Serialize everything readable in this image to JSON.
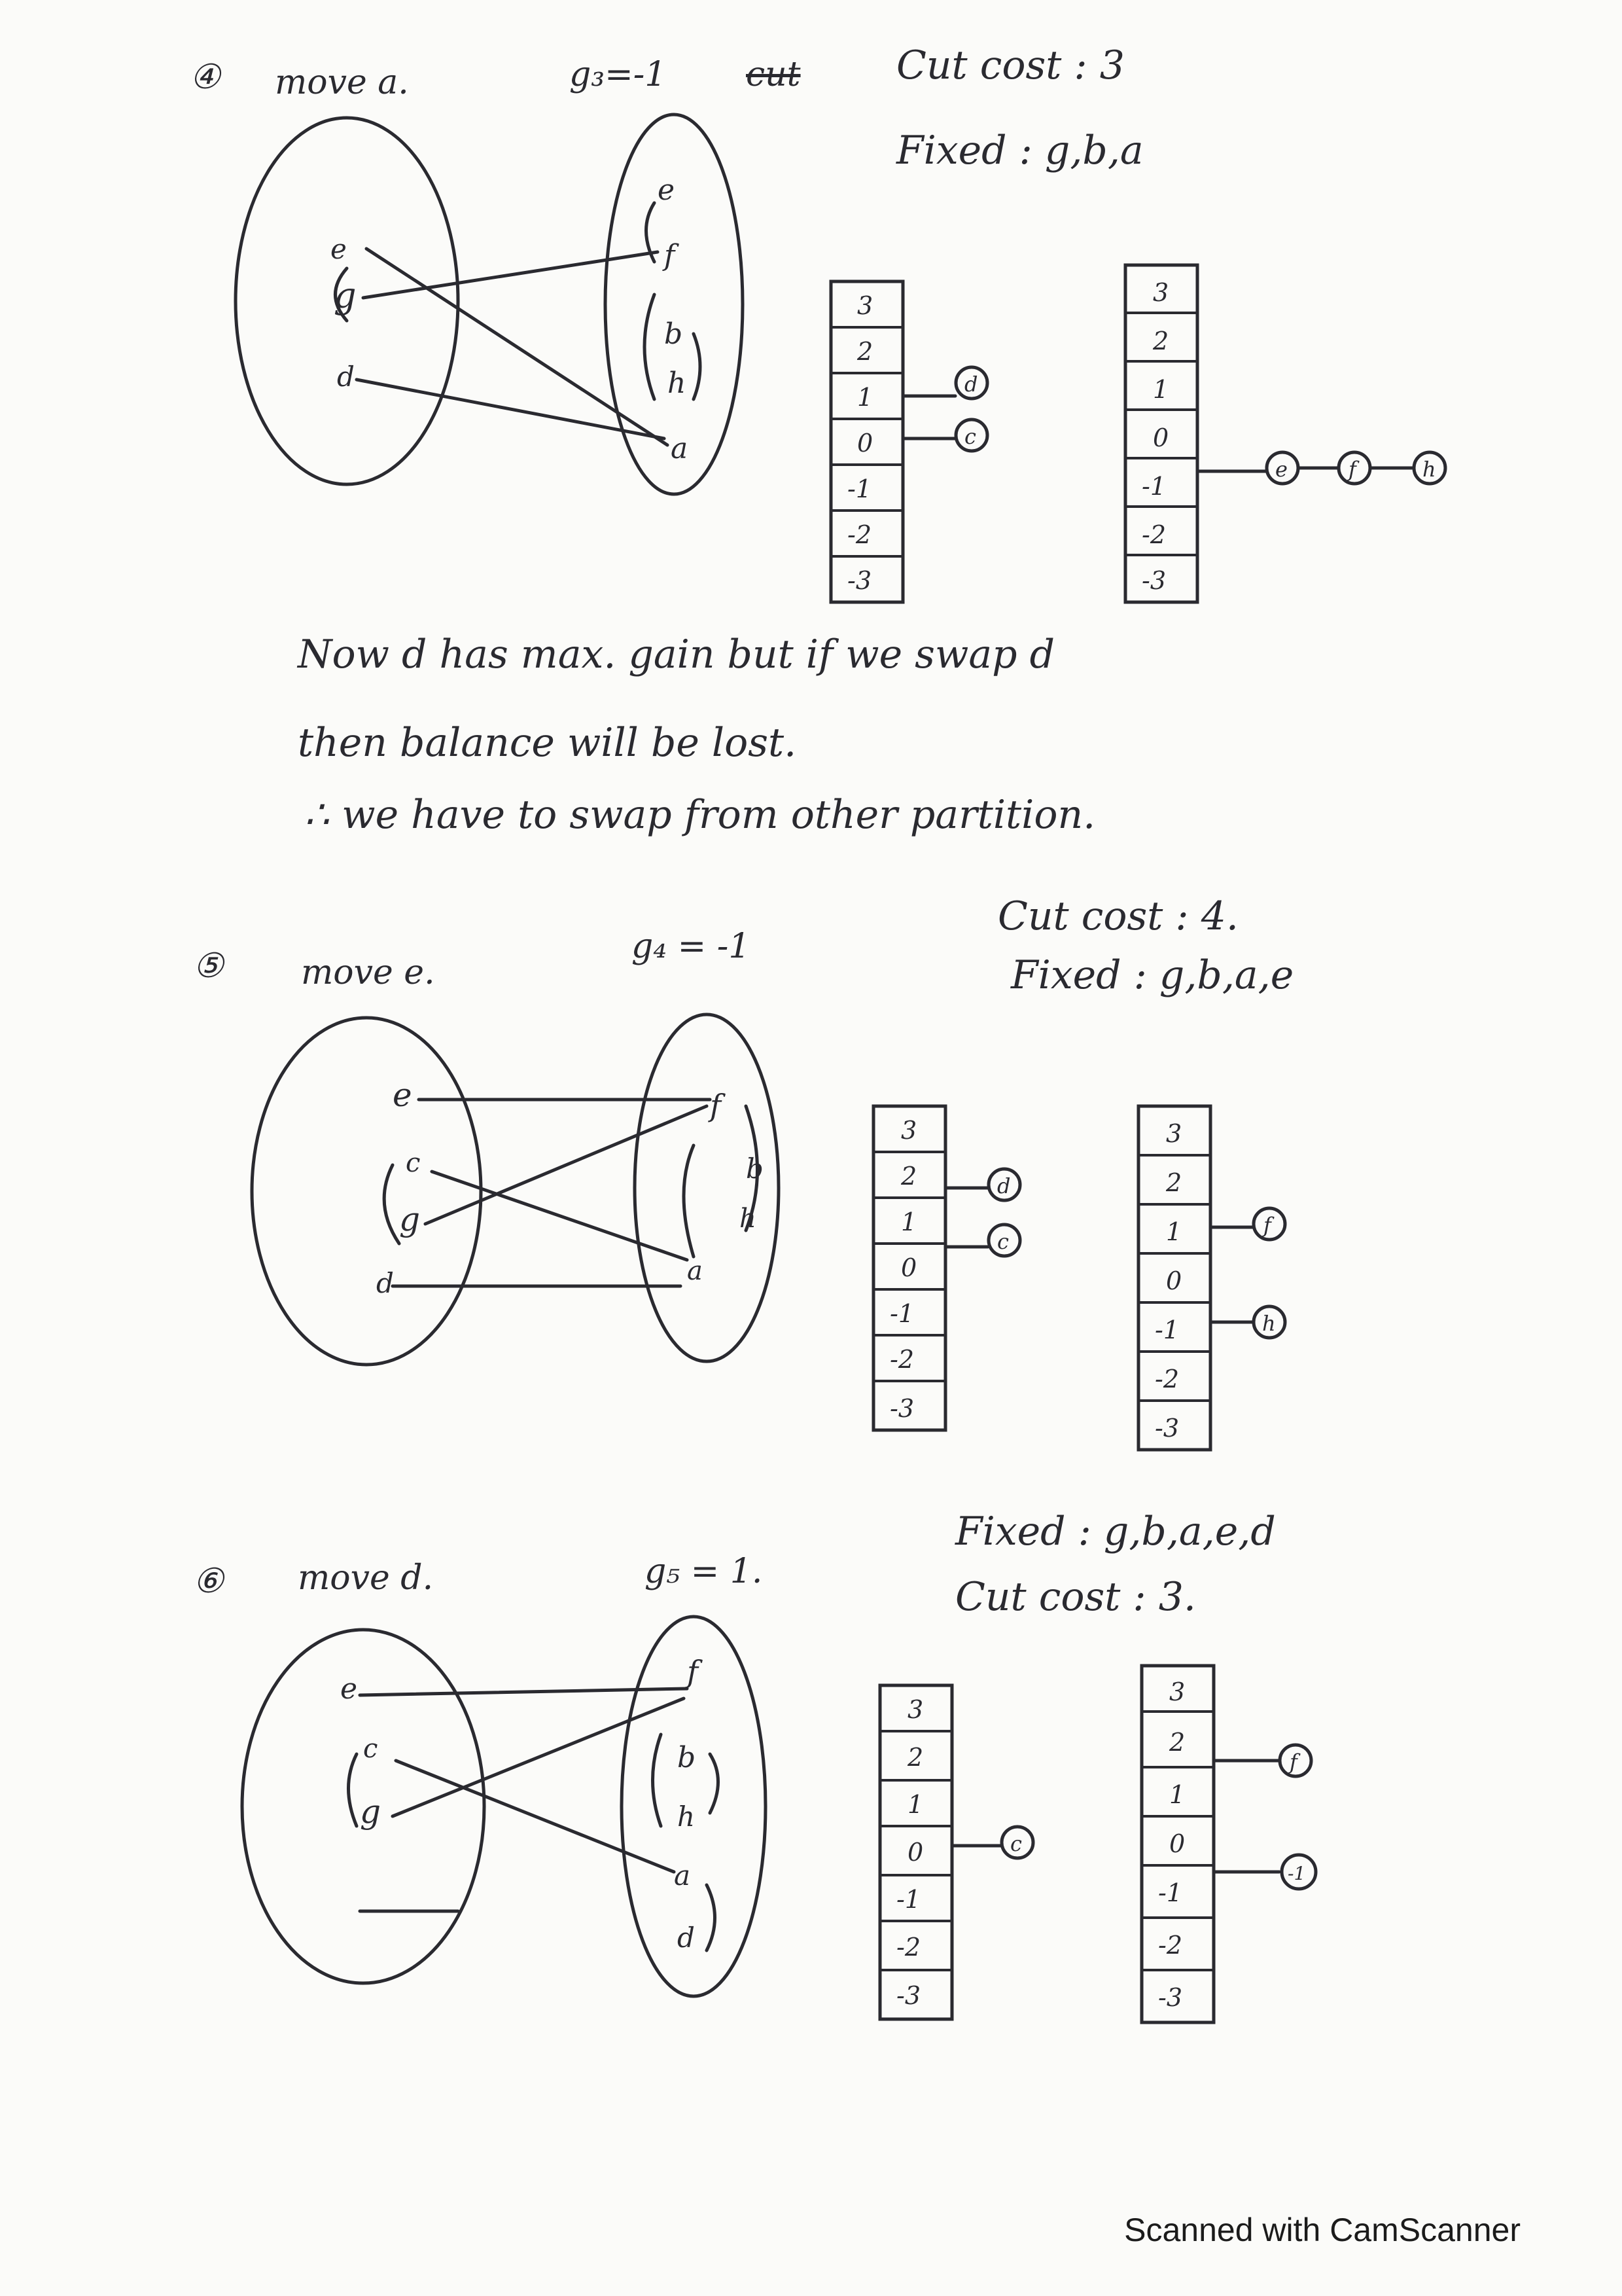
{
  "sections": [
    {
      "step": "4",
      "move_text": "move a.",
      "gain_text": "g₃=-1",
      "struck_text": "cut",
      "cut_cost_text": "Cut cost : 3",
      "fixed_text": "Fixed : g,b,a",
      "left_nodes": [
        "e",
        "g",
        "d"
      ],
      "right_nodes": [
        "e",
        "f",
        "b",
        "h",
        "a"
      ],
      "bucket_left_labels": [
        "3",
        "2",
        "1",
        "0",
        "-1",
        "-2",
        "-3"
      ],
      "bucket_left_nodes": [
        {
          "level": "1",
          "nodes": [
            "d"
          ]
        },
        {
          "level": "0",
          "nodes": [
            "c"
          ]
        }
      ],
      "bucket_right_labels": [
        "3",
        "2",
        "1",
        "0",
        "-1",
        "-2",
        "-3"
      ],
      "bucket_right_nodes": [
        {
          "level": "-1",
          "nodes": [
            "e",
            "f",
            "h"
          ]
        }
      ]
    },
    {
      "step": "5",
      "move_text": "move e.",
      "gain_text": "g₄ = -1",
      "cut_cost_text": "Cut cost : 4.",
      "fixed_text": "Fixed : g,b,a,e",
      "left_nodes": [
        "e",
        "c",
        "g",
        "d"
      ],
      "right_nodes": [
        "f",
        "b",
        "h",
        "a"
      ],
      "bucket_left_labels": [
        "3",
        "2",
        "1",
        "0",
        "-1",
        "-2",
        "-3"
      ],
      "bucket_left_nodes": [
        {
          "level": "2",
          "nodes": [
            "d"
          ]
        },
        {
          "level": "1",
          "nodes": [
            "c"
          ]
        }
      ],
      "bucket_right_labels": [
        "3",
        "2",
        "1",
        "0",
        "-1",
        "-2",
        "-3"
      ],
      "bucket_right_nodes": [
        {
          "level": "1",
          "nodes": [
            "f"
          ]
        },
        {
          "level": "-1",
          "nodes": [
            "h"
          ]
        }
      ]
    },
    {
      "step": "6",
      "move_text": "move d.",
      "gain_text": "g₅ = 1.",
      "fixed_text": "Fixed : g,b,a,e,d",
      "cut_cost_text": "Cut cost : 3.",
      "left_nodes": [
        "e",
        "c",
        "g"
      ],
      "right_nodes": [
        "f",
        "b",
        "h",
        "a",
        "d"
      ],
      "bucket_left_labels": [
        "3",
        "2",
        "1",
        "0",
        "-1",
        "-2",
        "-3"
      ],
      "bucket_left_nodes": [
        {
          "level": "0",
          "nodes": [
            "c"
          ]
        }
      ],
      "bucket_right_labels": [
        "3",
        "2",
        "1",
        "0",
        "-1",
        "-2",
        "-3"
      ],
      "bucket_right_nodes": [
        {
          "level": "1",
          "nodes": [
            "f"
          ]
        },
        {
          "level": "-1",
          "nodes": [
            "-1"
          ]
        }
      ]
    }
  ],
  "note_lines": [
    "Now d has max. gain but if we swap d",
    "then balance will be lost.",
    "∴ we have to swap from other partition."
  ],
  "footer": "Scanned with CamScanner"
}
